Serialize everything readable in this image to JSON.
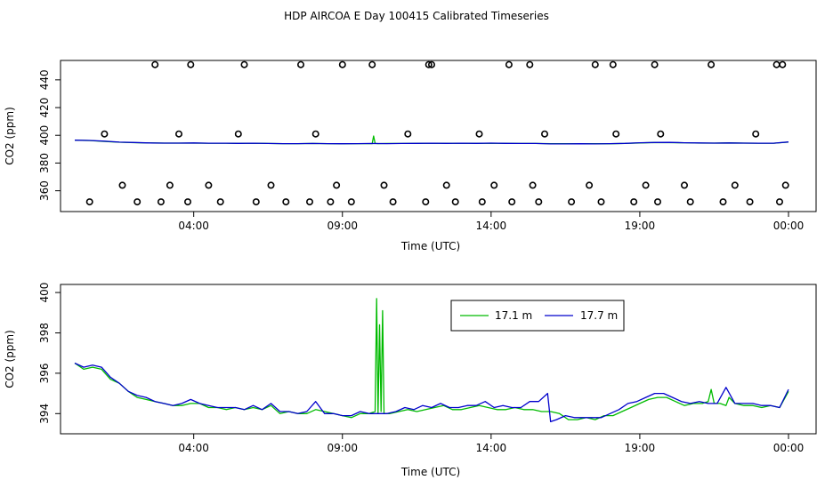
{
  "title": "HDP AIRCOA E  Day 100415  Calibrated Timeseries",
  "colors": {
    "green": "#00bb00",
    "blue": "#0000cc",
    "axis": "#000000"
  },
  "chart_data": [
    {
      "type": "line",
      "panel": "top",
      "xlabel": "Time (UTC)",
      "ylabel": "CO2 (ppm)",
      "xlim": [
        0,
        24
      ],
      "ylim": [
        345,
        454
      ],
      "x_ticks": [
        {
          "x": 4,
          "label": "04:00"
        },
        {
          "x": 9,
          "label": "09:00"
        },
        {
          "x": 14,
          "label": "14:00"
        },
        {
          "x": 19,
          "label": "19:00"
        },
        {
          "x": 24,
          "label": "00:00"
        }
      ],
      "y_ticks": [
        "360",
        "380",
        "400",
        "420",
        "440"
      ],
      "y_tick_values": [
        360,
        380,
        400,
        420,
        440
      ],
      "grid": false,
      "series": [
        {
          "color": "green",
          "x": [
            0,
            0.5,
            1,
            1.5,
            2,
            2.5,
            3,
            3.5,
            4,
            4.5,
            5,
            5.5,
            6,
            6.5,
            7,
            7.5,
            8,
            8.5,
            9,
            9.5,
            10,
            10.05,
            10.1,
            10.2,
            10.5,
            11,
            11.5,
            12,
            12.5,
            13,
            13.5,
            14,
            14.5,
            15,
            15.5,
            16,
            16.5,
            17,
            17.5,
            18,
            18.5,
            19,
            19.5,
            20,
            20.5,
            21,
            21.5,
            22,
            22.5,
            23,
            23.5,
            24
          ],
          "values": [
            396.5,
            396.2,
            395.6,
            395.0,
            394.7,
            394.5,
            394.4,
            394.4,
            394.4,
            394.3,
            394.3,
            394.2,
            394.3,
            394.1,
            394.0,
            394.0,
            394.1,
            394.0,
            393.9,
            394.0,
            394.0,
            399.5,
            394.1,
            394.0,
            394.1,
            394.1,
            394.2,
            394.3,
            394.2,
            394.3,
            394.2,
            394.3,
            394.2,
            394.1,
            394.1,
            394.0,
            393.9,
            393.9,
            393.9,
            393.9,
            394.1,
            394.5,
            394.8,
            394.7,
            394.6,
            394.4,
            394.4,
            394.5,
            394.4,
            394.3,
            394.3,
            395.1
          ]
        },
        {
          "color": "blue",
          "x": [
            0,
            0.5,
            1,
            1.5,
            2,
            2.5,
            3,
            3.5,
            4,
            4.5,
            5,
            5.5,
            6,
            6.5,
            7,
            7.5,
            8,
            8.5,
            9,
            9.5,
            10,
            10.5,
            11,
            11.5,
            12,
            12.5,
            13,
            13.5,
            14,
            14.5,
            15,
            15.5,
            16,
            16.5,
            17,
            17.5,
            18,
            18.5,
            19,
            19.5,
            20,
            20.5,
            21,
            21.5,
            22,
            22.5,
            23,
            23.5,
            24
          ],
          "values": [
            396.5,
            396.3,
            395.8,
            395.1,
            394.8,
            394.5,
            394.4,
            394.4,
            394.5,
            394.3,
            394.3,
            394.2,
            394.3,
            394.1,
            394.0,
            394.0,
            394.1,
            394.0,
            393.9,
            394.0,
            394.1,
            394.0,
            394.1,
            394.2,
            394.3,
            394.2,
            394.3,
            394.2,
            394.4,
            394.2,
            394.1,
            394.1,
            393.8,
            393.8,
            393.9,
            393.8,
            394.0,
            394.2,
            394.6,
            394.8,
            394.9,
            394.6,
            394.5,
            394.4,
            394.5,
            394.4,
            394.3,
            394.3,
            395.2
          ]
        }
      ],
      "points": {
        "x": [
          0.5,
          2.1,
          2.9,
          3.8,
          4.9,
          6.1,
          7.1,
          7.9,
          8.6,
          9.3,
          10.7,
          11.8,
          12.8,
          13.7,
          14.7,
          15.6,
          16.7,
          17.7,
          18.8,
          19.6,
          20.7,
          21.8,
          22.7,
          23.7,
          1.6,
          3.2,
          4.5,
          6.6,
          8.8,
          10.4,
          12.5,
          14.1,
          15.4,
          17.3,
          19.2,
          20.5,
          22.2,
          23.9,
          1.0,
          3.5,
          5.5,
          8.1,
          11.2,
          13.6,
          15.8,
          18.2,
          19.7,
          22.9,
          2.7,
          7.6,
          10.0,
          12.0,
          15.3,
          18.1,
          21.4,
          23.8,
          3.9,
          5.7,
          9.0,
          11.9,
          14.6,
          17.5,
          19.5,
          23.6
        ],
        "values": [
          352,
          352,
          352,
          352,
          352,
          352,
          352,
          352,
          352,
          352,
          352,
          352,
          352,
          352,
          352,
          352,
          352,
          352,
          352,
          352,
          352,
          352,
          352,
          352,
          364,
          364,
          364,
          364,
          364,
          364,
          364,
          364,
          364,
          364,
          364,
          364,
          364,
          364,
          401,
          401,
          401,
          401,
          401,
          401,
          401,
          401,
          401,
          401,
          451,
          451,
          451,
          451,
          451,
          451,
          451,
          451,
          451,
          451,
          451,
          451,
          451,
          451,
          451,
          451
        ]
      }
    },
    {
      "type": "line",
      "panel": "bottom",
      "xlabel": "Time (UTC)",
      "ylabel": "CO2 (ppm)",
      "xlim": [
        0,
        24
      ],
      "ylim": [
        393.0,
        400.4
      ],
      "x_ticks": [
        {
          "x": 4,
          "label": "04:00"
        },
        {
          "x": 9,
          "label": "09:00"
        },
        {
          "x": 14,
          "label": "14:00"
        },
        {
          "x": 19,
          "label": "19:00"
        },
        {
          "x": 24,
          "label": "00:00"
        }
      ],
      "y_ticks": [
        "394",
        "396",
        "398",
        "400"
      ],
      "y_tick_values": [
        394,
        396,
        398,
        400
      ],
      "grid": false,
      "legend": {
        "placement": "top-right",
        "entries": [
          {
            "label": "17.1 m",
            "color": "green"
          },
          {
            "label": "17.7 m",
            "color": "blue"
          }
        ]
      },
      "series": [
        {
          "name": "17.1 m",
          "color": "green",
          "x": [
            0,
            0.3,
            0.6,
            0.9,
            1.2,
            1.5,
            1.8,
            2.1,
            2.4,
            2.7,
            3.0,
            3.3,
            3.6,
            3.9,
            4.2,
            4.5,
            4.8,
            5.1,
            5.4,
            5.7,
            6.0,
            6.3,
            6.6,
            6.9,
            7.2,
            7.5,
            7.8,
            8.1,
            8.4,
            8.7,
            9.0,
            9.3,
            9.6,
            9.9,
            10.1,
            10.15,
            10.2,
            10.25,
            10.3,
            10.35,
            10.4,
            10.6,
            10.9,
            11.2,
            11.5,
            11.8,
            12.1,
            12.4,
            12.7,
            13.0,
            13.3,
            13.6,
            13.9,
            14.2,
            14.5,
            14.8,
            15.1,
            15.4,
            15.7,
            16.0,
            16.3,
            16.6,
            16.9,
            17.2,
            17.5,
            17.8,
            18.1,
            18.4,
            18.7,
            19.0,
            19.3,
            19.6,
            19.9,
            20.2,
            20.5,
            20.8,
            21.1,
            21.3,
            21.4,
            21.5,
            21.7,
            21.9,
            22.0,
            22.2,
            22.5,
            22.8,
            23.1,
            23.4,
            23.7,
            24.0
          ],
          "values": [
            396.5,
            396.2,
            396.3,
            396.2,
            395.7,
            395.5,
            395.1,
            394.8,
            394.7,
            394.6,
            394.5,
            394.4,
            394.4,
            394.5,
            394.5,
            394.3,
            394.3,
            394.2,
            394.3,
            394.2,
            394.3,
            394.2,
            394.4,
            394.0,
            394.1,
            394.0,
            394.0,
            394.2,
            394.1,
            394.0,
            393.9,
            393.8,
            394.0,
            394.0,
            394.1,
            399.7,
            394.0,
            398.4,
            394.1,
            399.1,
            394.0,
            394.0,
            394.1,
            394.2,
            394.1,
            394.2,
            394.3,
            394.4,
            394.2,
            394.2,
            394.3,
            394.4,
            394.3,
            394.2,
            394.2,
            394.3,
            394.2,
            394.2,
            394.1,
            394.1,
            394.0,
            393.7,
            393.7,
            393.8,
            393.7,
            393.9,
            393.9,
            394.1,
            394.3,
            394.5,
            394.7,
            394.8,
            394.8,
            394.6,
            394.4,
            394.5,
            394.5,
            394.6,
            395.2,
            394.5,
            394.5,
            394.4,
            394.8,
            394.5,
            394.4,
            394.4,
            394.3,
            394.4,
            394.3,
            395.1
          ]
        },
        {
          "name": "17.7 m",
          "color": "blue",
          "x": [
            0,
            0.3,
            0.6,
            0.9,
            1.2,
            1.5,
            1.8,
            2.1,
            2.4,
            2.7,
            3.0,
            3.3,
            3.6,
            3.9,
            4.2,
            4.5,
            4.8,
            5.1,
            5.4,
            5.7,
            6.0,
            6.3,
            6.6,
            6.9,
            7.2,
            7.5,
            7.8,
            8.1,
            8.4,
            8.7,
            9.0,
            9.3,
            9.6,
            9.9,
            10.2,
            10.5,
            10.8,
            11.1,
            11.4,
            11.7,
            12.0,
            12.3,
            12.6,
            12.9,
            13.2,
            13.5,
            13.8,
            14.1,
            14.4,
            14.7,
            15.0,
            15.3,
            15.6,
            15.9,
            16.0,
            16.2,
            16.5,
            16.8,
            17.1,
            17.4,
            17.7,
            18.0,
            18.3,
            18.6,
            18.9,
            19.2,
            19.5,
            19.8,
            20.1,
            20.4,
            20.7,
            21.0,
            21.3,
            21.6,
            21.9,
            22.2,
            22.5,
            22.8,
            23.1,
            23.4,
            23.7,
            24.0
          ],
          "values": [
            396.5,
            396.3,
            396.4,
            396.3,
            395.8,
            395.5,
            395.1,
            394.9,
            394.8,
            394.6,
            394.5,
            394.4,
            394.5,
            394.7,
            394.5,
            394.4,
            394.3,
            394.3,
            394.3,
            394.2,
            394.4,
            394.2,
            394.5,
            394.1,
            394.1,
            394.0,
            394.1,
            394.6,
            394.0,
            394.0,
            393.9,
            393.9,
            394.1,
            394.0,
            394.0,
            394.0,
            394.1,
            394.3,
            394.2,
            394.4,
            394.3,
            394.5,
            394.3,
            394.3,
            394.4,
            394.4,
            394.6,
            394.3,
            394.4,
            394.3,
            394.3,
            394.6,
            394.6,
            395.0,
            393.6,
            393.7,
            393.9,
            393.8,
            393.8,
            393.8,
            393.8,
            394.0,
            394.2,
            394.5,
            394.6,
            394.8,
            395.0,
            395.0,
            394.8,
            394.6,
            394.5,
            394.6,
            394.5,
            394.5,
            395.3,
            394.5,
            394.5,
            394.5,
            394.4,
            394.4,
            394.3,
            395.2
          ]
        }
      ]
    }
  ]
}
